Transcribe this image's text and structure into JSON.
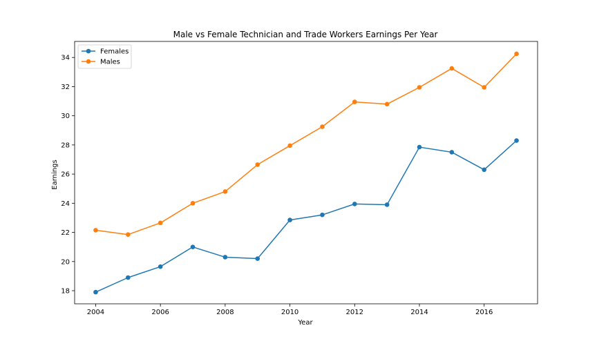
{
  "chart_data": {
    "type": "line",
    "title": "Male vs Female Technician and Trade Workers Earnings Per Year",
    "xlabel": "Year",
    "ylabel": "Earnings",
    "x": [
      2004,
      2005,
      2006,
      2007,
      2008,
      2009,
      2010,
      2011,
      2012,
      2013,
      2014,
      2015,
      2016,
      2017
    ],
    "xlim": [
      2003.35,
      2017.65
    ],
    "ylim": [
      17.1,
      35.1
    ],
    "xticks": [
      2004,
      2006,
      2008,
      2010,
      2012,
      2014,
      2016
    ],
    "yticks": [
      18,
      20,
      22,
      24,
      26,
      28,
      30,
      32,
      34
    ],
    "grid": false,
    "legend": "top-left",
    "series": [
      {
        "name": "Females",
        "color": "#1f77b4",
        "marker": "circle",
        "values": [
          17.9,
          18.9,
          19.65,
          21.0,
          20.3,
          20.2,
          22.85,
          23.2,
          23.95,
          23.9,
          27.85,
          27.5,
          26.3,
          28.3
        ]
      },
      {
        "name": "Males",
        "color": "#ff7f0e",
        "marker": "circle",
        "values": [
          22.15,
          21.85,
          22.65,
          24.0,
          24.8,
          26.65,
          27.95,
          29.25,
          30.95,
          30.8,
          31.95,
          33.25,
          31.95,
          34.25
        ]
      }
    ]
  }
}
